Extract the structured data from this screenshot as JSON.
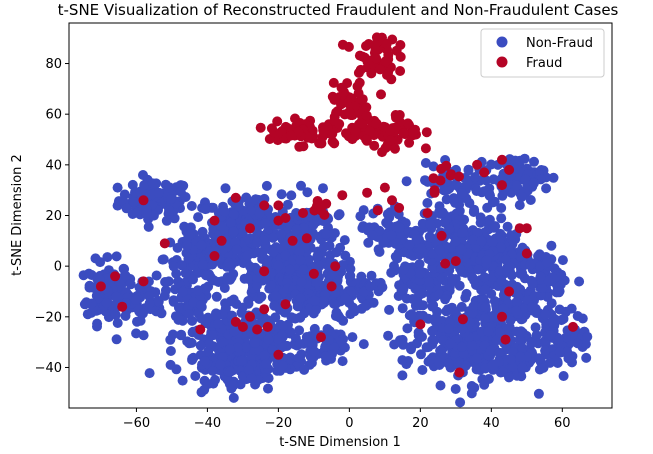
{
  "chart_data": {
    "type": "scatter",
    "title": "t-SNE Visualization of Reconstructed Fraudulent and Non-Fraudulent Cases",
    "xlabel": "t-SNE Dimension 1",
    "ylabel": "t-SNE Dimension 2",
    "xlim": [
      -79,
      74
    ],
    "ylim": [
      -56,
      96
    ],
    "xticks": [
      -60,
      -40,
      -20,
      0,
      20,
      40,
      60
    ],
    "yticks": [
      -40,
      -20,
      0,
      20,
      40,
      60,
      80
    ],
    "legend_position": "top-right",
    "grid": false,
    "series": [
      {
        "name": "Non-Fraud",
        "color": "#3b4cc0",
        "clusters": [
          {
            "cx": -55,
            "cy": 26,
            "sx": 5,
            "sy": 4,
            "n": 90
          },
          {
            "cx": -68,
            "cy": -10,
            "sx": 3,
            "sy": 6,
            "n": 140
          },
          {
            "cx": -57,
            "cy": -13,
            "sx": 3,
            "sy": 4,
            "n": 40
          },
          {
            "cx": -40,
            "cy": 3,
            "sx": 6,
            "sy": 5,
            "n": 120
          },
          {
            "cx": -45,
            "cy": -15,
            "sx": 3,
            "sy": 4,
            "n": 50
          },
          {
            "cx": -28,
            "cy": 15,
            "sx": 8,
            "sy": 7,
            "n": 220
          },
          {
            "cx": -20,
            "cy": -5,
            "sx": 7,
            "sy": 6,
            "n": 150
          },
          {
            "cx": -28,
            "cy": -30,
            "sx": 10,
            "sy": 7,
            "n": 280
          },
          {
            "cx": -32,
            "cy": -40,
            "sx": 7,
            "sy": 3,
            "n": 80
          },
          {
            "cx": -12,
            "cy": 10,
            "sx": 4,
            "sy": 8,
            "n": 90
          },
          {
            "cx": -8,
            "cy": -12,
            "sx": 5,
            "sy": 6,
            "n": 70
          },
          {
            "cx": -5,
            "cy": -30,
            "sx": 4,
            "sy": 4,
            "n": 30
          },
          {
            "cx": 0,
            "cy": -10,
            "sx": 4,
            "sy": 4,
            "n": 40
          },
          {
            "cx": 12,
            "cy": 15,
            "sx": 5,
            "sy": 4,
            "n": 60
          },
          {
            "cx": 20,
            "cy": -8,
            "sx": 6,
            "sy": 5,
            "n": 70
          },
          {
            "cx": 30,
            "cy": 8,
            "sx": 9,
            "sy": 8,
            "n": 260
          },
          {
            "cx": 45,
            "cy": 2,
            "sx": 5,
            "sy": 6,
            "n": 80
          },
          {
            "cx": 30,
            "cy": 32,
            "sx": 6,
            "sy": 4,
            "n": 60
          },
          {
            "cx": 47,
            "cy": 35,
            "sx": 4,
            "sy": 4,
            "n": 80
          },
          {
            "cx": 33,
            "cy": -30,
            "sx": 9,
            "sy": 8,
            "n": 300
          },
          {
            "cx": 45,
            "cy": -15,
            "sx": 5,
            "sy": 5,
            "n": 80
          },
          {
            "cx": 60,
            "cy": -28,
            "sx": 4,
            "sy": 5,
            "n": 80
          },
          {
            "cx": 57,
            "cy": -5,
            "sx": 3,
            "sy": 4,
            "n": 40
          },
          {
            "cx": 48,
            "cy": -38,
            "sx": 4,
            "sy": 3,
            "n": 30
          }
        ]
      },
      {
        "name": "Fraud",
        "color": "#b40426",
        "clusters": [
          {
            "cx": 7,
            "cy": 83,
            "sx": 3,
            "sy": 5,
            "n": 50
          },
          {
            "cx": -13,
            "cy": 53,
            "sx": 5,
            "sy": 3,
            "n": 60
          },
          {
            "cx": 0,
            "cy": 64,
            "sx": 3,
            "sy": 4,
            "n": 40
          },
          {
            "cx": 10,
            "cy": 52,
            "sx": 5,
            "sy": 4,
            "n": 70
          },
          {
            "cx": -10,
            "cy": 23,
            "sx": 2,
            "sy": 2,
            "n": 6
          },
          {
            "cx": 28,
            "cy": 36,
            "sx": 3,
            "sy": 3,
            "n": 8
          }
        ],
        "points": [
          [
            -58,
            26
          ],
          [
            -58,
            -6
          ],
          [
            -66,
            -4
          ],
          [
            -64,
            -16
          ],
          [
            -52,
            9
          ],
          [
            -38,
            18
          ],
          [
            -36,
            10
          ],
          [
            -38,
            4
          ],
          [
            -42,
            -25
          ],
          [
            -32,
            27
          ],
          [
            -28,
            15
          ],
          [
            -24,
            24
          ],
          [
            -20,
            24
          ],
          [
            -20,
            18
          ],
          [
            -28,
            -20
          ],
          [
            -30,
            -24
          ],
          [
            -32,
            -22
          ],
          [
            -26,
            -25
          ],
          [
            -23,
            -24
          ],
          [
            -20,
            -35
          ],
          [
            -24,
            -2
          ],
          [
            -18,
            -15
          ],
          [
            -16,
            10
          ],
          [
            -10,
            -3
          ],
          [
            -8,
            -28
          ],
          [
            -5,
            -8
          ],
          [
            -4,
            0
          ],
          [
            -2,
            28
          ],
          [
            5,
            29
          ],
          [
            10,
            31
          ],
          [
            12,
            26
          ],
          [
            14,
            23
          ],
          [
            22,
            21
          ],
          [
            20,
            -23
          ],
          [
            26,
            12
          ],
          [
            30,
            2
          ],
          [
            27,
            1
          ],
          [
            32,
            -21
          ],
          [
            31,
            -42
          ],
          [
            38,
            37
          ],
          [
            43,
            42
          ],
          [
            45,
            38
          ],
          [
            43,
            32
          ],
          [
            48,
            15
          ],
          [
            50,
            15
          ],
          [
            50,
            5
          ],
          [
            45,
            -10
          ],
          [
            44,
            -29
          ],
          [
            43,
            -20
          ],
          [
            63,
            -24
          ],
          [
            -70,
            -8
          ],
          [
            -24,
            -17
          ],
          [
            -18,
            19
          ],
          [
            -12,
            11
          ],
          [
            -8,
            22
          ],
          [
            8,
            22
          ],
          [
            24,
            30
          ],
          [
            36,
            40
          ]
        ]
      }
    ]
  }
}
